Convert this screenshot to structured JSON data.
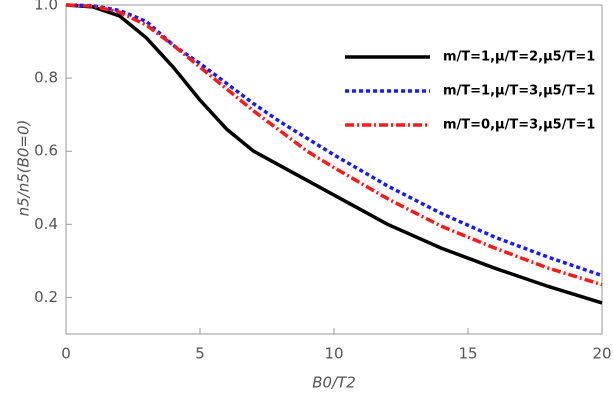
{
  "chart_data": {
    "type": "line",
    "xlabel": "B0/T2",
    "ylabel": "n5/n5(B0=0)",
    "x": [
      0,
      1,
      2,
      3,
      4,
      5,
      6,
      7,
      8,
      9,
      10,
      12,
      14,
      16,
      18,
      20
    ],
    "series": [
      {
        "name": "m/T=1,μ/T=2,μ5/T=1",
        "color": "#000000",
        "dash": "solid",
        "values": [
          1.0,
          0.995,
          0.97,
          0.91,
          0.83,
          0.74,
          0.66,
          0.6,
          0.56,
          0.52,
          0.48,
          0.4,
          0.335,
          0.28,
          0.23,
          0.185
        ]
      },
      {
        "name": "m/T=1,μ/T=3,μ5/T=1",
        "color": "#1a1aff",
        "dash": "dotted",
        "values": [
          1.0,
          0.998,
          0.985,
          0.955,
          0.89,
          0.84,
          0.785,
          0.73,
          0.68,
          0.635,
          0.59,
          0.505,
          0.43,
          0.365,
          0.31,
          0.26
        ]
      },
      {
        "name": "m/T=0,μ/T=3,μ5/T=1",
        "color": "#ff1a1a",
        "dash": "dashdot",
        "values": [
          1.0,
          0.997,
          0.98,
          0.945,
          0.89,
          0.83,
          0.77,
          0.71,
          0.655,
          0.6,
          0.555,
          0.47,
          0.395,
          0.335,
          0.28,
          0.235
        ]
      }
    ],
    "xlim": [
      0,
      20
    ],
    "ylim": [
      0.1,
      1.0
    ],
    "xticks": [
      0,
      5,
      10,
      15,
      20
    ],
    "yticks": [
      0.2,
      0.4,
      0.6,
      0.8,
      {
        "value": 1.0,
        "label": "1.0"
      }
    ],
    "legend": "top-right"
  }
}
